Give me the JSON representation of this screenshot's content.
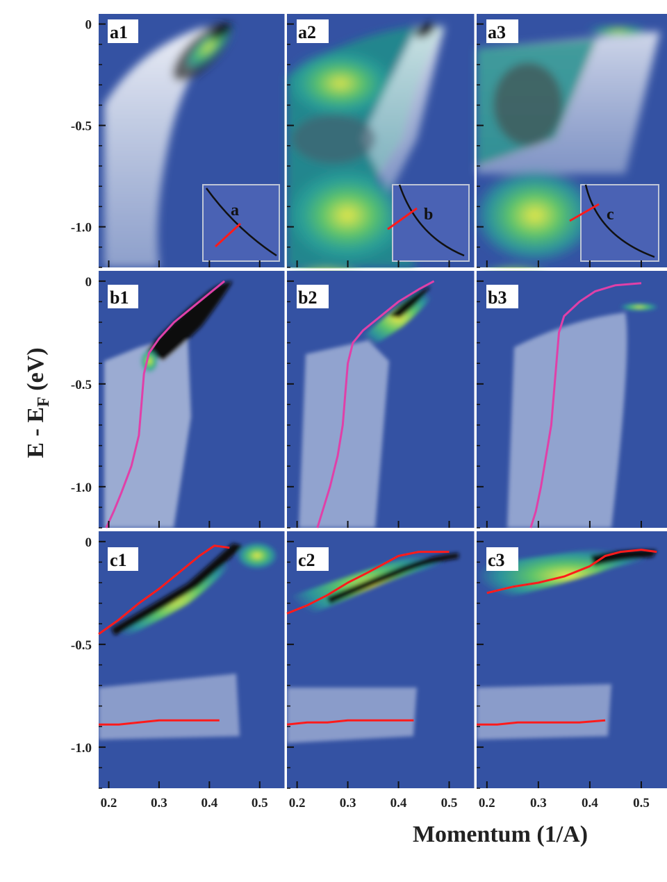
{
  "figure": {
    "ylabel_main": "E - E",
    "ylabel_sub": "F",
    "ylabel_unit": " (eV)",
    "xlabel": "Momentum (1/A)"
  },
  "colors": {
    "background": "#3452a3",
    "inset_fill": "#4a62b4",
    "inset_border": "#bfc6d6",
    "red_line": "#ff1b1b",
    "magenta_line": "#e040a8",
    "divider": "#ffffff"
  },
  "chart_data": {
    "type": "heatmap",
    "x_axis": {
      "label": "Momentum (1/A)",
      "range": [
        0.18,
        0.55
      ],
      "ticks": [
        0.2,
        0.3,
        0.4,
        0.5
      ],
      "tick_labels": [
        "0.2",
        "0.3",
        "0.4",
        "0.5"
      ]
    },
    "y_axis_row_a": {
      "range": [
        -1.2,
        0.05
      ],
      "ticks": [
        0,
        -0.5,
        -1.0
      ],
      "tick_labels": [
        "0",
        "-0.5",
        "-1.0"
      ]
    },
    "y_axis_row_b": {
      "range": [
        -1.2,
        0.05
      ],
      "ticks": [
        0,
        -0.5,
        -1.0
      ],
      "tick_labels": [
        "0",
        "-0.5",
        "-1.0"
      ]
    },
    "y_axis_row_c": {
      "range": [
        -1.2,
        0.05
      ],
      "ticks": [
        0,
        -0.5,
        -1.0
      ],
      "tick_labels": [
        "0",
        "-0.5",
        "-1.0"
      ]
    },
    "panels": [
      {
        "id": "a1",
        "label": "a1",
        "row": "a",
        "col": 1,
        "inset_label": "a",
        "band": [
          [
            0.43,
            -0.01
          ],
          [
            0.4,
            -0.04
          ],
          [
            0.35,
            -0.12
          ],
          [
            0.31,
            -0.22
          ]
        ]
      },
      {
        "id": "a2",
        "label": "a2",
        "row": "a",
        "col": 2,
        "inset_label": "b",
        "band": [
          [
            0.46,
            -0.02
          ],
          [
            0.42,
            -0.06
          ],
          [
            0.38,
            -0.16
          ],
          [
            0.34,
            -0.28
          ]
        ]
      },
      {
        "id": "a3",
        "label": "a3",
        "row": "a",
        "col": 3,
        "inset_label": "c",
        "band": [
          [
            0.5,
            -0.03
          ],
          [
            0.42,
            -0.06
          ],
          [
            0.3,
            -0.15
          ]
        ]
      },
      {
        "id": "b1",
        "label": "b1",
        "row": "b",
        "col": 1,
        "series": [
          {
            "color": "magenta",
            "points": [
              [
                0.43,
                0.0
              ],
              [
                0.41,
                -0.04
              ],
              [
                0.37,
                -0.12
              ],
              [
                0.33,
                -0.2
              ],
              [
                0.3,
                -0.28
              ],
              [
                0.28,
                -0.35
              ],
              [
                0.27,
                -0.45
              ],
              [
                0.265,
                -0.6
              ],
              [
                0.26,
                -0.75
              ],
              [
                0.245,
                -0.9
              ],
              [
                0.225,
                -1.03
              ],
              [
                0.21,
                -1.12
              ],
              [
                0.195,
                -1.2
              ]
            ]
          }
        ]
      },
      {
        "id": "b2",
        "label": "b2",
        "row": "b",
        "col": 2,
        "series": [
          {
            "color": "magenta",
            "points": [
              [
                0.47,
                0.0
              ],
              [
                0.44,
                -0.04
              ],
              [
                0.4,
                -0.1
              ],
              [
                0.36,
                -0.18
              ],
              [
                0.33,
                -0.24
              ],
              [
                0.31,
                -0.3
              ],
              [
                0.3,
                -0.4
              ],
              [
                0.295,
                -0.55
              ],
              [
                0.29,
                -0.7
              ],
              [
                0.28,
                -0.85
              ],
              [
                0.265,
                -1.0
              ],
              [
                0.25,
                -1.12
              ],
              [
                0.24,
                -1.2
              ]
            ]
          }
        ]
      },
      {
        "id": "b3",
        "label": "b3",
        "row": "b",
        "col": 3,
        "series": [
          {
            "color": "magenta",
            "points": [
              [
                0.5,
                -0.01
              ],
              [
                0.45,
                -0.02
              ],
              [
                0.41,
                -0.05
              ],
              [
                0.38,
                -0.1
              ],
              [
                0.35,
                -0.17
              ],
              [
                0.34,
                -0.25
              ],
              [
                0.335,
                -0.4
              ],
              [
                0.33,
                -0.55
              ],
              [
                0.325,
                -0.7
              ],
              [
                0.315,
                -0.85
              ],
              [
                0.305,
                -1.0
              ],
              [
                0.295,
                -1.12
              ],
              [
                0.285,
                -1.2
              ]
            ]
          }
        ]
      },
      {
        "id": "c1",
        "label": "c1",
        "row": "c",
        "col": 1,
        "series": [
          {
            "color": "red",
            "points": [
              [
                0.18,
                -0.45
              ],
              [
                0.22,
                -0.38
              ],
              [
                0.26,
                -0.3
              ],
              [
                0.3,
                -0.23
              ],
              [
                0.34,
                -0.15
              ],
              [
                0.38,
                -0.07
              ],
              [
                0.41,
                -0.02
              ],
              [
                0.44,
                -0.03
              ]
            ]
          },
          {
            "color": "red",
            "points": [
              [
                0.18,
                -0.89
              ],
              [
                0.22,
                -0.89
              ],
              [
                0.26,
                -0.88
              ],
              [
                0.3,
                -0.87
              ],
              [
                0.34,
                -0.87
              ],
              [
                0.38,
                -0.87
              ],
              [
                0.42,
                -0.87
              ]
            ]
          }
        ]
      },
      {
        "id": "c2",
        "label": "c2",
        "row": "c",
        "col": 2,
        "series": [
          {
            "color": "red",
            "points": [
              [
                0.18,
                -0.35
              ],
              [
                0.22,
                -0.31
              ],
              [
                0.26,
                -0.26
              ],
              [
                0.3,
                -0.2
              ],
              [
                0.34,
                -0.15
              ],
              [
                0.37,
                -0.11
              ],
              [
                0.4,
                -0.07
              ],
              [
                0.44,
                -0.05
              ],
              [
                0.5,
                -0.05
              ]
            ]
          },
          {
            "color": "red",
            "points": [
              [
                0.18,
                -0.89
              ],
              [
                0.22,
                -0.88
              ],
              [
                0.26,
                -0.88
              ],
              [
                0.3,
                -0.87
              ],
              [
                0.34,
                -0.87
              ],
              [
                0.38,
                -0.87
              ],
              [
                0.43,
                -0.87
              ]
            ]
          }
        ]
      },
      {
        "id": "c3",
        "label": "c3",
        "row": "c",
        "col": 3,
        "series": [
          {
            "color": "red",
            "points": [
              [
                0.2,
                -0.25
              ],
              [
                0.25,
                -0.22
              ],
              [
                0.3,
                -0.2
              ],
              [
                0.35,
                -0.17
              ],
              [
                0.4,
                -0.12
              ],
              [
                0.43,
                -0.07
              ],
              [
                0.46,
                -0.05
              ],
              [
                0.5,
                -0.04
              ],
              [
                0.53,
                -0.05
              ]
            ]
          },
          {
            "color": "red",
            "points": [
              [
                0.18,
                -0.89
              ],
              [
                0.22,
                -0.89
              ],
              [
                0.26,
                -0.88
              ],
              [
                0.3,
                -0.88
              ],
              [
                0.34,
                -0.88
              ],
              [
                0.38,
                -0.88
              ],
              [
                0.43,
                -0.87
              ]
            ]
          }
        ]
      }
    ]
  }
}
